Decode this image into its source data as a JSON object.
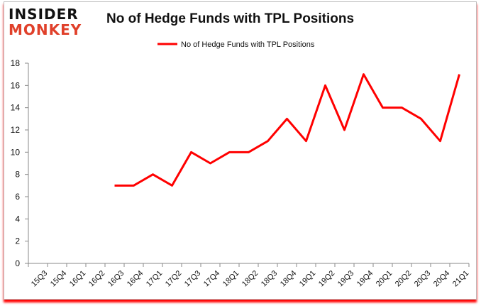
{
  "logo": {
    "line1": "INSIDER",
    "line2": "MONKEY"
  },
  "chart_data": {
    "type": "line",
    "title": "No of Hedge Funds with TPL Positions",
    "categories": [
      "15Q3",
      "15Q4",
      "16Q1",
      "16Q2",
      "16Q3",
      "16Q4",
      "17Q1",
      "17Q2",
      "17Q3",
      "17Q4",
      "18Q1",
      "18Q2",
      "18Q3",
      "18Q4",
      "19Q1",
      "19Q2",
      "19Q3",
      "19Q4",
      "20Q1",
      "20Q2",
      "20Q3",
      "20Q4",
      "21Q1"
    ],
    "series": [
      {
        "name": "No of Hedge Funds with TPL Positions",
        "color": "#ff0000",
        "values": [
          null,
          null,
          null,
          null,
          7,
          7,
          8,
          7,
          10,
          9,
          10,
          10,
          11,
          13,
          11,
          16,
          12,
          17,
          14,
          14,
          13,
          11,
          17
        ]
      }
    ],
    "ylim": [
      0,
      18
    ],
    "yticks": [
      0,
      2,
      4,
      6,
      8,
      10,
      12,
      14,
      16,
      18
    ],
    "legend": "top-center",
    "grid": false
  }
}
